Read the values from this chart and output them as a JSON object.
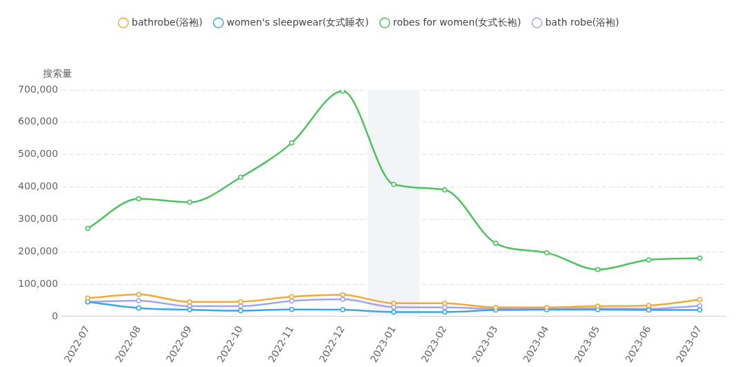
{
  "chart_data": {
    "type": "line",
    "ylabel": "搜索量",
    "categories": [
      "2022-07",
      "2022-08",
      "2022-09",
      "2022-10",
      "2022-11",
      "2022-12",
      "2023-01",
      "2023-02",
      "2023-03",
      "2023-04",
      "2023-05",
      "2023-06",
      "2023-07"
    ],
    "series": [
      {
        "name": "bathrobe(浴袍)",
        "color": "#f5a833",
        "values": [
          57000,
          68000,
          45000,
          46000,
          61000,
          67000,
          41000,
          41000,
          28000,
          28000,
          32000,
          34000,
          52000
        ]
      },
      {
        "name": "women's sleepwear(女式睡衣)",
        "color": "#3aa6ee",
        "values": [
          45000,
          26000,
          21000,
          18000,
          22000,
          21000,
          14000,
          14000,
          20000,
          21000,
          21000,
          20000,
          20000
        ]
      },
      {
        "name": "robes for women(女式长袍)",
        "color": "#4cc35c",
        "values": [
          272000,
          364000,
          353000,
          430000,
          536000,
          696000,
          408000,
          391000,
          226000,
          197000,
          145000,
          175000,
          180000
        ]
      },
      {
        "name": "bath robe(浴袍)",
        "color": "#a5a3ee",
        "values": [
          45000,
          49000,
          32000,
          32000,
          48000,
          53000,
          29000,
          28000,
          24000,
          24000,
          25000,
          24000,
          33000
        ]
      }
    ],
    "ylim": [
      0,
      700000
    ],
    "yticks": [
      0,
      {
        "value": 100000,
        "label": "100,000"
      },
      {
        "value": 200000,
        "label": "200,000"
      },
      {
        "value": 300000,
        "label": "300,000"
      },
      {
        "value": 400000,
        "label": "400,000"
      },
      {
        "value": 500000,
        "label": "500,000"
      },
      {
        "value": 600000,
        "label": "600,000"
      },
      {
        "value": 700000,
        "label": "700,000"
      }
    ],
    "bands": [
      {
        "axis": "x",
        "from": "2023-01",
        "to": "2023-01",
        "color": "#f2f4f7"
      }
    ],
    "grid": "y",
    "legend": "top",
    "marker": "circle",
    "line_style": "solid"
  }
}
